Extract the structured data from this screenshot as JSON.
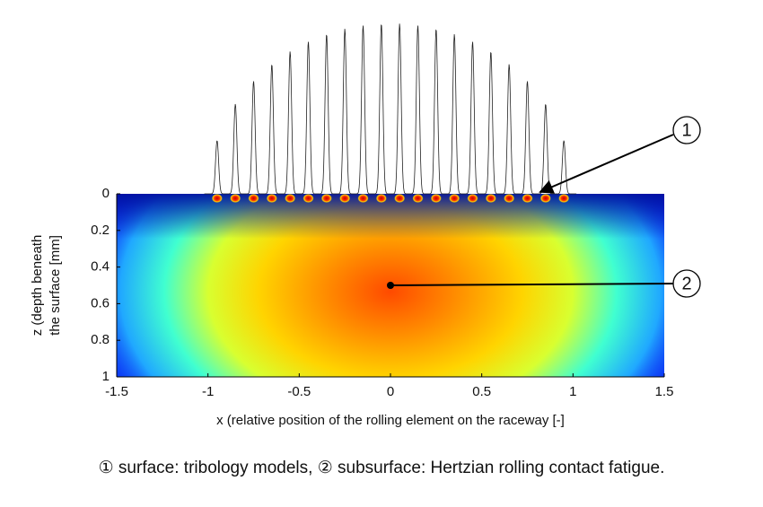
{
  "chart_data": {
    "type": "contour",
    "xlabel": "x (relative position of the rolling element on the raceway   [-]",
    "ylabel": [
      "z (depth beneath",
      "the surface   [mm]"
    ],
    "xlim": [
      -1.5,
      1.5
    ],
    "xticks": [
      -1.5,
      -1,
      -0.5,
      0,
      0.5,
      1,
      1.5
    ],
    "ylim": [
      1,
      0
    ],
    "yticks": [
      0,
      0.2,
      0.4,
      0.6,
      0.8,
      1
    ],
    "annotations": [
      {
        "label": "1",
        "x": 0.8,
        "y": 0
      },
      {
        "label": "2",
        "x": 0,
        "y": 0.5
      }
    ],
    "caption": "① surface: tribology models, ② subsurface: Hertzian rolling contact fatigue."
  }
}
